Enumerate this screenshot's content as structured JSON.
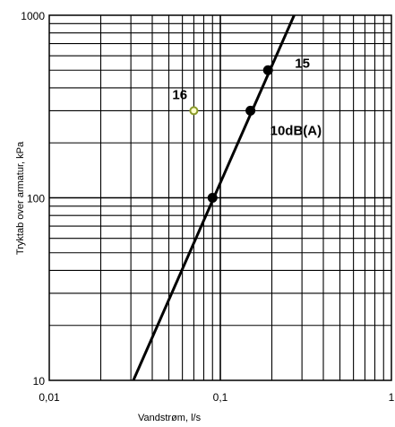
{
  "chart_data": {
    "type": "line",
    "title": "",
    "xlabel": "Vandstrøm, l/s",
    "ylabel": "Tryktab over armatur, kPa",
    "x_scale": "log",
    "y_scale": "log",
    "xlim": [
      0.01,
      1
    ],
    "ylim": [
      10,
      1000
    ],
    "grid": true,
    "x_ticks": [
      {
        "value": 0.01,
        "label": "0,01"
      },
      {
        "value": 0.1,
        "label": "0,1"
      },
      {
        "value": 1,
        "label": "1"
      }
    ],
    "y_ticks": [
      {
        "value": 10,
        "label": "10"
      },
      {
        "value": 100,
        "label": "100"
      },
      {
        "value": 1000,
        "label": "1000"
      }
    ],
    "series": [
      {
        "line": [
          [
            0.031,
            10
          ],
          [
            0.27,
            1000
          ]
        ],
        "markers": [
          [
            0.09,
            100
          ],
          [
            0.15,
            300
          ],
          [
            0.19,
            500
          ]
        ],
        "color": "#000000"
      }
    ],
    "extra_points": [
      {
        "x": 0.07,
        "y": 300,
        "label": "16",
        "fill": "#ffffcc",
        "stroke": "#8a9a2a"
      }
    ],
    "annotations": [
      {
        "text": "15",
        "x": 0.19,
        "y": 500
      },
      {
        "text": "10dB(A)",
        "x": 0.15,
        "y": 300
      }
    ]
  }
}
